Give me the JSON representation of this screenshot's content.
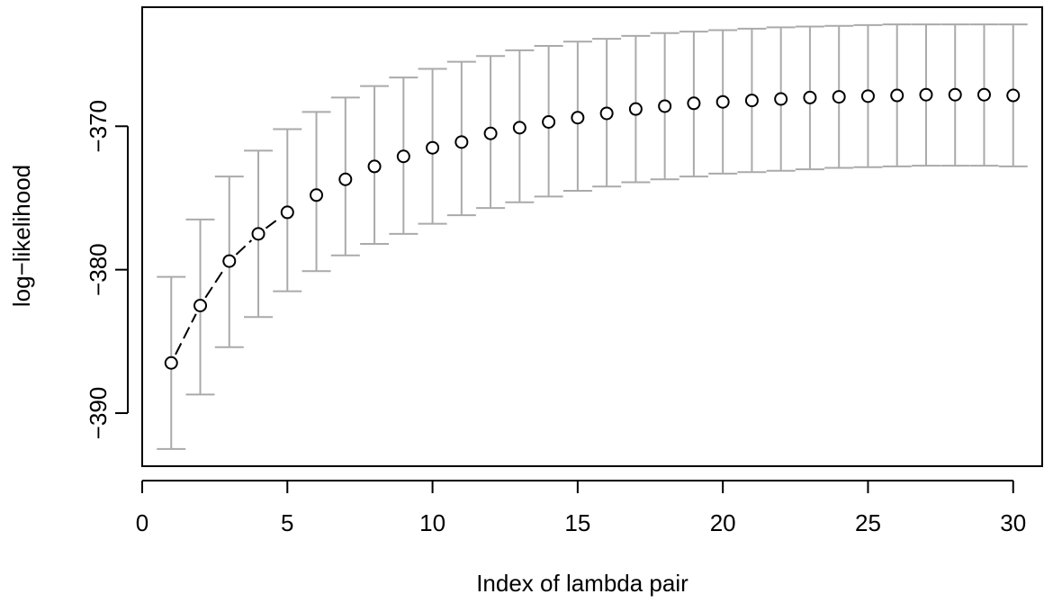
{
  "chart_data": {
    "type": "scatter",
    "xlabel": "Index of lambda pair",
    "ylabel": "log−likelihood",
    "xlim": [
      0,
      31
    ],
    "ylim": [
      -393.7,
      -361.7
    ],
    "x_ticks": [
      0,
      5,
      10,
      15,
      20,
      25,
      30
    ],
    "x_tick_labels": [
      "0",
      "5",
      "10",
      "15",
      "20",
      "25",
      "30"
    ],
    "y_ticks": [
      -370,
      -380,
      -390
    ],
    "y_tick_labels": [
      "−370",
      "−380",
      "−390"
    ],
    "grid": false,
    "legend": "none",
    "series": [
      {
        "style": "points with error bars",
        "x": [
          1,
          2,
          3,
          4,
          5,
          6,
          7,
          8,
          9,
          10,
          11,
          12,
          13,
          14,
          15,
          16,
          17,
          18,
          19,
          20,
          21,
          22,
          23,
          24,
          25,
          26,
          27,
          28,
          29,
          30
        ],
        "y": [
          -386.5,
          -382.5,
          -379.4,
          -377.5,
          -376.0,
          -374.8,
          -373.7,
          -372.8,
          -372.1,
          -371.5,
          -371.1,
          -370.5,
          -370.1,
          -369.7,
          -369.4,
          -369.1,
          -368.8,
          -368.6,
          -368.4,
          -368.3,
          -368.2,
          -368.1,
          -368.0,
          -367.95,
          -367.9,
          -367.85,
          -367.8,
          -367.8,
          -367.8,
          -367.85
        ],
        "upper": [
          -380.5,
          -376.5,
          -373.5,
          -371.7,
          -370.2,
          -369.0,
          -368.0,
          -367.2,
          -366.6,
          -366.0,
          -365.5,
          -365.1,
          -364.7,
          -364.4,
          -364.1,
          -363.9,
          -363.7,
          -363.5,
          -363.4,
          -363.3,
          -363.2,
          -363.1,
          -363.05,
          -363.0,
          -362.95,
          -362.9,
          -362.9,
          -362.9,
          -362.9,
          -362.9
        ],
        "lower": [
          -392.5,
          -388.7,
          -385.4,
          -383.3,
          -381.5,
          -380.1,
          -379.0,
          -378.2,
          -377.5,
          -376.8,
          -376.2,
          -375.7,
          -375.3,
          -374.9,
          -374.5,
          -374.2,
          -373.9,
          -373.7,
          -373.5,
          -373.3,
          -373.2,
          -373.1,
          -373.0,
          -372.9,
          -372.85,
          -372.8,
          -372.75,
          -372.75,
          -372.75,
          -372.8
        ]
      }
    ],
    "connected_segment": {
      "x_from": 1,
      "x_to": 5,
      "line_style": "dashed"
    },
    "colors": {
      "points": "#000000",
      "error_bars": "#aaaaaa",
      "axes": "#000000"
    }
  }
}
